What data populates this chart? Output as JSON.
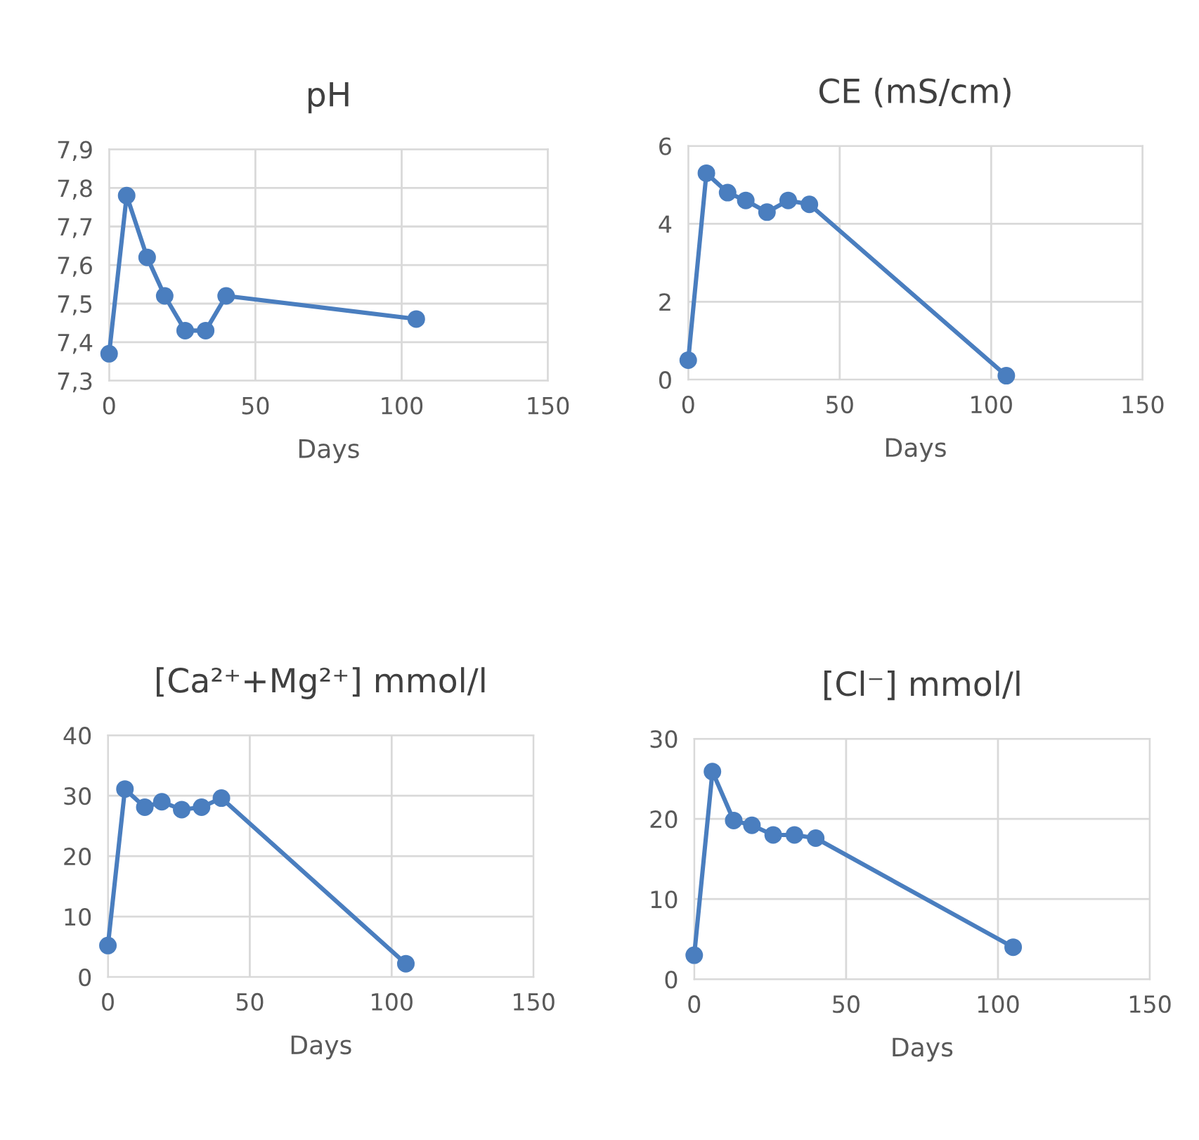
{
  "chart_data": [
    {
      "type": "line",
      "title": "pH",
      "xlabel": "Days",
      "x": [
        0,
        6,
        13,
        19,
        26,
        33,
        40,
        105
      ],
      "series": [
        {
          "color": "#4a7ebf",
          "values": [
            7.37,
            7.78,
            7.62,
            7.52,
            7.43,
            7.43,
            7.52,
            7.46
          ]
        }
      ],
      "xlim": [
        0,
        150
      ],
      "xticks": [
        0,
        50,
        100,
        150
      ],
      "ylim": [
        7.3,
        7.9
      ],
      "yticks": [
        {
          "value": 7.3,
          "label": "7,3"
        },
        {
          "value": 7.4,
          "label": "7,4"
        },
        {
          "value": 7.5,
          "label": "7,5"
        },
        {
          "value": 7.6,
          "label": "7,6"
        },
        {
          "value": 7.7,
          "label": "7,7"
        },
        {
          "value": 7.8,
          "label": "7,8"
        },
        {
          "value": 7.9,
          "label": "7,9"
        }
      ],
      "grid": true,
      "marker": "circle",
      "line_style": "solid"
    },
    {
      "type": "line",
      "title": "CE (mS/cm)",
      "xlabel": "Days",
      "x": [
        0,
        6,
        13,
        19,
        26,
        33,
        40,
        105
      ],
      "series": [
        {
          "color": "#4a7ebf",
          "values": [
            0.5,
            5.3,
            4.8,
            4.6,
            4.3,
            4.6,
            4.5,
            0.1
          ]
        }
      ],
      "xlim": [
        0,
        150
      ],
      "xticks": [
        0,
        50,
        100,
        150
      ],
      "ylim": [
        0,
        6
      ],
      "yticks": [
        0,
        2,
        4,
        6
      ],
      "grid": true,
      "marker": "circle",
      "line_style": "solid"
    },
    {
      "type": "line",
      "title": "[Ca²⁺+Mg²⁺] mmol/l",
      "xlabel": "Days",
      "x": [
        0,
        6,
        13,
        19,
        26,
        33,
        40,
        105
      ],
      "series": [
        {
          "color": "#4a7ebf",
          "values": [
            5.2,
            31.1,
            28.1,
            29.0,
            27.7,
            28.1,
            29.6,
            2.2
          ]
        }
      ],
      "xlim": [
        0,
        150
      ],
      "xticks": [
        0,
        50,
        100,
        150
      ],
      "ylim": [
        0,
        40
      ],
      "yticks": [
        0,
        10,
        20,
        30,
        40
      ],
      "grid": true,
      "marker": "circle",
      "line_style": "solid"
    },
    {
      "type": "line",
      "title": "[Cl⁻] mmol/l",
      "xlabel": "Days",
      "x": [
        0,
        6,
        13,
        19,
        26,
        33,
        40,
        105
      ],
      "series": [
        {
          "color": "#4a7ebf",
          "values": [
            3.0,
            25.9,
            19.8,
            19.2,
            18.0,
            18.0,
            17.6,
            4.0
          ]
        }
      ],
      "xlim": [
        0,
        150
      ],
      "xticks": [
        0,
        50,
        100,
        150
      ],
      "ylim": [
        0,
        30
      ],
      "yticks": [
        0,
        10,
        20,
        30
      ],
      "grid": true,
      "marker": "circle",
      "line_style": "solid"
    }
  ]
}
